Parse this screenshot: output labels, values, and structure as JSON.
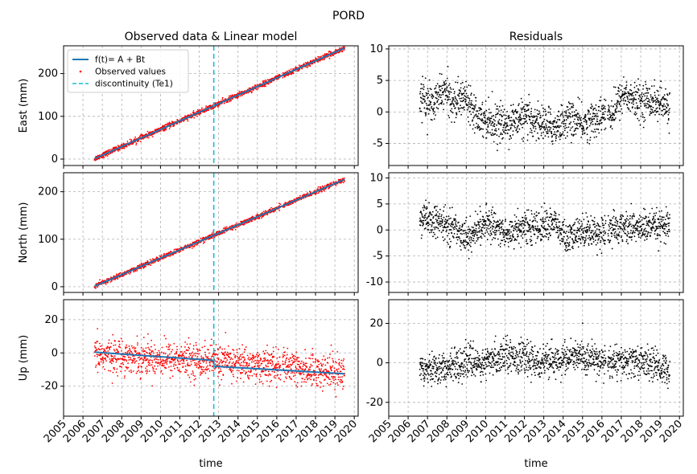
{
  "figure": {
    "suptitle": "PORD"
  },
  "chart_data": [
    {
      "id": "east-model",
      "type": "scatter",
      "title": "Observed data & Linear model",
      "ylabel": "East (mm)",
      "xlabel": "",
      "ylim": [
        -15,
        265
      ],
      "xlim": [
        2005.0,
        2020.2
      ],
      "yticks": [
        0,
        100,
        200
      ],
      "xticks": [
        2005,
        2006,
        2007,
        2008,
        2009,
        2010,
        2011,
        2012,
        2013,
        2014,
        2015,
        2016,
        2017,
        2018,
        2019,
        2020
      ],
      "show_xticklabels": false,
      "grid": true,
      "legend": {
        "position": "top-left",
        "entries": [
          "f(t)= A + Bt",
          "Observed values",
          "discontinuity (Te1)"
        ]
      },
      "series": [
        {
          "name": "Observed values",
          "kind": "points",
          "color": "#ff0000",
          "x_range": [
            2006.6,
            2019.5
          ],
          "trend": [
            [
              2006.6,
              1
            ],
            [
              2019.5,
              260
            ]
          ],
          "noise": 3
        },
        {
          "name": "f(t)= A + Bt",
          "kind": "line",
          "color": "#1f77b4",
          "x": [
            2006.6,
            2019.5
          ],
          "y": [
            1,
            260
          ]
        }
      ],
      "discontinuity": {
        "name": "discontinuity (Te1)",
        "x": 2012.75,
        "color": "#17becf"
      }
    },
    {
      "id": "east-residuals",
      "type": "scatter",
      "title": "Residuals",
      "ylabel": "",
      "xlabel": "",
      "ylim": [
        -8.5,
        10.5
      ],
      "xlim": [
        2005.0,
        2020.2
      ],
      "yticks": [
        -5,
        0,
        5,
        10
      ],
      "xticks": [
        2005,
        2006,
        2007,
        2008,
        2009,
        2010,
        2011,
        2012,
        2013,
        2014,
        2015,
        2016,
        2017,
        2018,
        2019,
        2020
      ],
      "show_xticklabels": false,
      "grid": true,
      "series": [
        {
          "name": "",
          "kind": "points",
          "color": "#000000",
          "x_range": [
            2006.6,
            2019.5
          ],
          "mean_curve": [
            [
              2006.6,
              2.5
            ],
            [
              2007.3,
              1.0
            ],
            [
              2007.8,
              3.5
            ],
            [
              2008.4,
              1.5
            ],
            [
              2009.0,
              2.5
            ],
            [
              2009.6,
              -0.5
            ],
            [
              2010.3,
              -1.5
            ],
            [
              2011.0,
              -2.0
            ],
            [
              2011.8,
              -1.0
            ],
            [
              2012.7,
              -1.5
            ],
            [
              2013.5,
              -2.5
            ],
            [
              2014.3,
              -1.0
            ],
            [
              2015.0,
              -2.0
            ],
            [
              2016.0,
              -0.5
            ],
            [
              2016.6,
              0.0
            ],
            [
              2017.1,
              3.0
            ],
            [
              2017.8,
              1.5
            ],
            [
              2018.5,
              2.0
            ],
            [
              2019.5,
              0.5
            ]
          ],
          "noise": 1.4
        }
      ]
    },
    {
      "id": "north-model",
      "type": "scatter",
      "title": "",
      "ylabel": "North (mm)",
      "xlabel": "",
      "ylim": [
        -12,
        240
      ],
      "xlim": [
        2005.0,
        2020.2
      ],
      "yticks": [
        0,
        100,
        200
      ],
      "xticks": [
        2005,
        2006,
        2007,
        2008,
        2009,
        2010,
        2011,
        2012,
        2013,
        2014,
        2015,
        2016,
        2017,
        2018,
        2019,
        2020
      ],
      "show_xticklabels": false,
      "grid": true,
      "series": [
        {
          "name": "Observed values",
          "kind": "points",
          "color": "#ff0000",
          "x_range": [
            2006.6,
            2019.5
          ],
          "trend": [
            [
              2006.6,
              1
            ],
            [
              2019.5,
              226
            ]
          ],
          "noise": 2.5
        },
        {
          "name": "f(t)= A + Bt",
          "kind": "line",
          "color": "#1f77b4",
          "x": [
            2006.6,
            2019.5
          ],
          "y": [
            1,
            226
          ]
        }
      ],
      "discontinuity": {
        "name": "discontinuity (Te1)",
        "x": 2012.75,
        "color": "#17becf"
      }
    },
    {
      "id": "north-residuals",
      "type": "scatter",
      "title": "",
      "ylabel": "",
      "xlabel": "",
      "ylim": [
        -12,
        11
      ],
      "xlim": [
        2005.0,
        2020.2
      ],
      "yticks": [
        -10,
        -5,
        0,
        5,
        10
      ],
      "xticks": [
        2005,
        2006,
        2007,
        2008,
        2009,
        2010,
        2011,
        2012,
        2013,
        2014,
        2015,
        2016,
        2017,
        2018,
        2019,
        2020
      ],
      "show_xticklabels": false,
      "grid": true,
      "series": [
        {
          "name": "",
          "kind": "points",
          "color": "#000000",
          "x_range": [
            2006.6,
            2019.5
          ],
          "mean_curve": [
            [
              2006.6,
              2.0
            ],
            [
              2007.5,
              1.5
            ],
            [
              2008.3,
              0.5
            ],
            [
              2009.2,
              -1.5
            ],
            [
              2009.8,
              1.0
            ],
            [
              2010.5,
              1.0
            ],
            [
              2011.0,
              -1.0
            ],
            [
              2011.7,
              0.5
            ],
            [
              2012.7,
              0.5
            ],
            [
              2013.5,
              1.5
            ],
            [
              2014.2,
              -2.0
            ],
            [
              2015.0,
              0.0
            ],
            [
              2016.0,
              -0.5
            ],
            [
              2017.0,
              0.5
            ],
            [
              2018.0,
              0.5
            ],
            [
              2019.5,
              0.5
            ]
          ],
          "noise": 1.5
        }
      ]
    },
    {
      "id": "up-model",
      "type": "scatter",
      "title": "",
      "ylabel": "Up (mm)",
      "xlabel": "time",
      "ylim": [
        -38,
        32
      ],
      "xlim": [
        2005.0,
        2020.2
      ],
      "yticks": [
        -20,
        0,
        20
      ],
      "xticks": [
        2005,
        2006,
        2007,
        2008,
        2009,
        2010,
        2011,
        2012,
        2013,
        2014,
        2015,
        2016,
        2017,
        2018,
        2019,
        2020
      ],
      "xticklabels": [
        "2005",
        "2006",
        "2007",
        "2008",
        "2009",
        "2010",
        "2011",
        "2012",
        "2013",
        "2014",
        "2015",
        "2016",
        "2017",
        "2018",
        "2019",
        "2020"
      ],
      "show_xticklabels": true,
      "grid": true,
      "series": [
        {
          "name": "Observed values",
          "kind": "points",
          "color": "#ff0000",
          "x_range": [
            2006.6,
            2019.5
          ],
          "trend": [
            [
              2006.6,
              -1
            ],
            [
              2012.75,
              -5
            ],
            [
              2019.5,
              -12
            ]
          ],
          "noise": 5
        },
        {
          "name": "f(t)= A + Bt",
          "kind": "line",
          "color": "#1f77b4",
          "x": [
            2006.6,
            2012.75,
            2012.75,
            2019.5
          ],
          "y": [
            0.5,
            -4.5,
            -8,
            -12.5
          ]
        }
      ],
      "discontinuity": {
        "name": "discontinuity (Te1)",
        "x": 2012.75,
        "color": "#17becf"
      }
    },
    {
      "id": "up-residuals",
      "type": "scatter",
      "title": "",
      "ylabel": "",
      "xlabel": "time",
      "ylim": [
        -27,
        32
      ],
      "xlim": [
        2005.0,
        2020.2
      ],
      "yticks": [
        -20,
        0,
        20
      ],
      "xticks": [
        2005,
        2006,
        2007,
        2008,
        2009,
        2010,
        2011,
        2012,
        2013,
        2014,
        2015,
        2016,
        2017,
        2018,
        2019,
        2020
      ],
      "xticklabels": [
        "2005",
        "2006",
        "2007",
        "2008",
        "2009",
        "2010",
        "2011",
        "2012",
        "2013",
        "2014",
        "2015",
        "2016",
        "2017",
        "2018",
        "2019",
        "2020"
      ],
      "show_xticklabels": true,
      "grid": true,
      "series": [
        {
          "name": "",
          "kind": "points",
          "color": "#000000",
          "x_range": [
            2006.6,
            2019.5
          ],
          "mean_curve": [
            [
              2006.6,
              -2
            ],
            [
              2008.0,
              -3
            ],
            [
              2009.0,
              1
            ],
            [
              2010.0,
              -1
            ],
            [
              2011.0,
              5
            ],
            [
              2012.0,
              2
            ],
            [
              2013.0,
              0
            ],
            [
              2014.0,
              2
            ],
            [
              2015.0,
              3
            ],
            [
              2016.0,
              1
            ],
            [
              2017.0,
              0
            ],
            [
              2018.0,
              1
            ],
            [
              2019.5,
              -4
            ]
          ],
          "noise": 4
        }
      ]
    }
  ]
}
